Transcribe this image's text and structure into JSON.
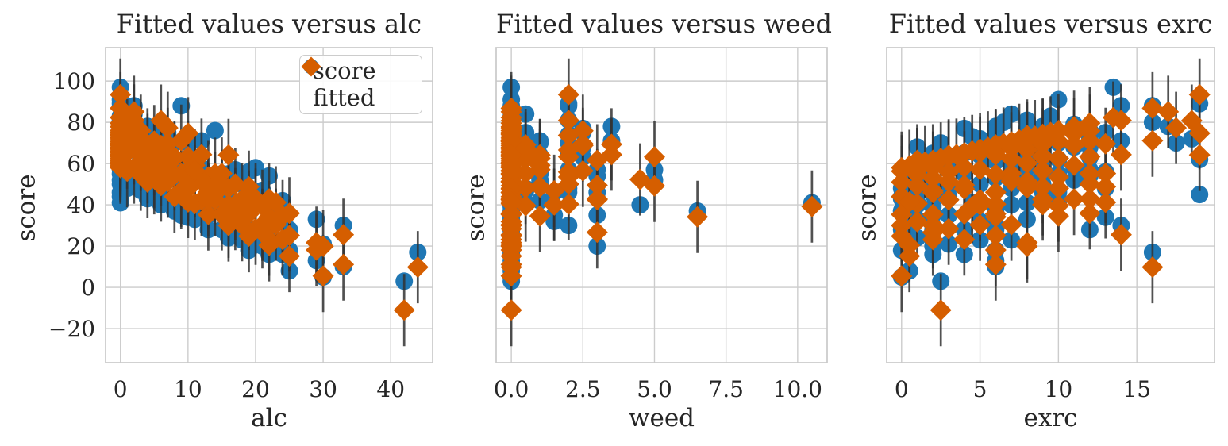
{
  "figure": {
    "background": "#ffffff",
    "text_color": "#262626",
    "grid_color": "#cccccc",
    "spine_color": "#c9c9c9",
    "errorbar_color": "#333333"
  },
  "legend": {
    "items": [
      {
        "label": "score",
        "marker": "circle"
      },
      {
        "label": "fitted",
        "marker": "diamond"
      }
    ]
  },
  "chart_data": {
    "type": "scatter",
    "colors": {
      "score": "#1f77b4",
      "fitted": "#d55e00"
    },
    "ylabel": "score",
    "yticks": [
      -20,
      0,
      20,
      40,
      60,
      80,
      100
    ],
    "ytick_labels": [
      "−20",
      "0",
      "20",
      "40",
      "60",
      "80",
      "100"
    ],
    "ylim": [
      -36.5,
      116.2
    ],
    "grid": true,
    "error_bar_halfwidth": 17.5,
    "x_keys": [
      "alc",
      "weed",
      "exrc"
    ],
    "panels": [
      {
        "title": "Fitted values versus alc",
        "xlabel": "alc",
        "ylabel": "score",
        "x_index": 0,
        "xticks": [
          0,
          10,
          20,
          30,
          40
        ],
        "xtick_labels": [
          "0",
          "10",
          "20",
          "30",
          "40"
        ],
        "xlim": [
          -2.2,
          46.2
        ],
        "show_ytick_labels": true,
        "show_legend": true
      },
      {
        "title": "Fitted values versus weed",
        "xlabel": "weed",
        "ylabel": "score",
        "x_index": 1,
        "xticks": [
          0,
          2.5,
          5,
          7.5,
          10
        ],
        "xtick_labels": [
          "0.0",
          "2.5",
          "5.0",
          "7.5",
          "10.0"
        ],
        "xlim": [
          -0.53,
          11.03
        ],
        "show_ytick_labels": false,
        "show_legend": false
      },
      {
        "title": "Fitted values versus exrc",
        "xlabel": "exrc",
        "ylabel": "score",
        "x_index": 2,
        "xticks": [
          0,
          5,
          10,
          15
        ],
        "xtick_labels": [
          "0",
          "5",
          "10",
          "15"
        ],
        "xlim": [
          -0.95,
          19.95
        ],
        "show_ytick_labels": false,
        "show_legend": false
      }
    ],
    "observations_columns": [
      "alc",
      "weed",
      "exrc",
      "score",
      "fitted"
    ],
    "observations": [
      [
        0,
        0,
        0,
        44,
        58.0
      ],
      [
        0,
        0,
        1,
        68,
        59.8
      ],
      [
        0,
        0,
        2,
        65,
        61.6
      ],
      [
        0,
        0,
        3,
        57,
        63.4
      ],
      [
        0,
        0,
        4,
        77,
        65.2
      ],
      [
        0,
        0,
        5,
        65,
        67.0
      ],
      [
        0,
        0,
        6,
        78,
        68.8
      ],
      [
        0,
        0,
        7,
        61,
        70.6
      ],
      [
        0,
        0,
        8,
        77,
        72.4
      ],
      [
        0,
        0,
        9,
        70,
        74.2
      ],
      [
        0,
        0,
        10,
        91,
        76.0
      ],
      [
        0,
        0,
        11,
        79,
        77.8
      ],
      [
        0,
        0,
        12,
        72,
        79.6
      ],
      [
        0,
        0,
        13.5,
        97,
        82.3
      ],
      [
        0,
        2,
        19,
        89,
        93.4
      ],
      [
        0,
        0,
        0.5,
        52,
        58.9
      ],
      [
        0,
        0,
        1.5,
        55,
        60.7
      ],
      [
        0,
        0,
        2.5,
        70,
        62.5
      ],
      [
        0,
        0,
        3.5,
        58,
        64.3
      ],
      [
        0,
        0,
        4.5,
        73,
        66.1
      ],
      [
        0,
        0,
        5.5,
        62,
        67.9
      ],
      [
        0,
        0,
        6.5,
        80,
        69.7
      ],
      [
        0,
        0,
        7.5,
        65,
        71.5
      ],
      [
        0,
        0,
        8.5,
        60,
        73.3
      ],
      [
        0,
        0,
        9.5,
        83,
        75.1
      ],
      [
        0,
        1,
        3,
        50,
        64.0
      ],
      [
        0,
        0.5,
        6,
        75,
        69.1
      ],
      [
        0,
        3,
        1,
        46,
        61.6
      ],
      [
        0,
        2,
        8,
        81,
        73.6
      ],
      [
        0,
        0,
        16,
        80,
        86.8
      ],
      [
        1,
        0,
        0,
        48,
        56.3
      ],
      [
        1,
        0,
        5,
        72,
        65.3
      ],
      [
        1,
        2,
        9,
        66,
        73.7
      ],
      [
        2,
        0,
        2,
        50,
        58.1
      ],
      [
        2,
        0.5,
        7,
        84,
        67.4
      ],
      [
        2,
        0,
        11,
        68,
        74.3
      ],
      [
        3,
        0,
        1,
        47,
        54.6
      ],
      [
        3,
        1,
        6,
        71,
        64.2
      ],
      [
        3,
        0,
        10,
        62,
        70.8
      ],
      [
        4,
        0,
        0,
        43,
        51.0
      ],
      [
        4,
        0,
        4,
        65,
        58.2
      ],
      [
        4,
        2,
        8,
        74,
        66.6
      ],
      [
        5,
        0,
        2,
        45,
        52.9
      ],
      [
        5,
        0.5,
        7,
        70,
        62.2
      ],
      [
        5,
        0,
        12,
        63,
        70.9
      ],
      [
        6,
        0,
        1,
        40,
        49.3
      ],
      [
        6,
        1,
        5,
        64,
        57.1
      ],
      [
        6,
        0,
        9,
        72,
        63.7
      ],
      [
        7,
        0,
        3,
        44,
        51.2
      ],
      [
        7,
        0,
        8,
        67,
        60.2
      ],
      [
        7,
        2.5,
        13,
        75,
        69.6
      ],
      [
        8,
        0,
        0,
        37,
        44.0
      ],
      [
        8,
        0,
        6,
        61,
        54.8
      ],
      [
        8,
        1,
        10,
        70,
        62.6
      ],
      [
        9,
        0,
        2,
        39,
        45.9
      ],
      [
        9,
        0,
        16,
        88,
        71.1
      ],
      [
        9,
        0.5,
        7,
        48,
        55.2
      ],
      [
        10,
        0,
        4,
        55,
        47.7
      ],
      [
        10,
        0,
        9,
        49,
        56.7
      ],
      [
        10,
        2,
        12,
        70,
        63.3
      ],
      [
        11,
        0,
        1,
        33,
        40.6
      ],
      [
        11,
        0,
        7,
        59,
        51.4
      ],
      [
        11,
        1,
        11,
        52,
        59.2
      ],
      [
        12,
        0,
        3,
        35,
        42.4
      ],
      [
        12,
        0,
        8,
        58,
        51.4
      ],
      [
        12,
        3.5,
        14,
        71,
        64.3
      ],
      [
        13,
        0,
        0,
        28,
        35.3
      ],
      [
        13,
        0,
        6,
        53,
        46.1
      ],
      [
        13,
        2,
        10,
        46,
        53.5
      ],
      [
        14,
        0,
        5,
        50,
        42.5
      ],
      [
        14,
        0,
        12,
        76,
        55.1
      ],
      [
        14,
        0.5,
        8,
        41,
        48.2
      ],
      [
        15,
        0,
        2,
        28,
        35.4
      ],
      [
        15,
        1,
        9,
        55,
        48.6
      ],
      [
        15,
        0,
        13,
        48,
        55.2
      ],
      [
        16,
        0,
        1,
        24,
        31.8
      ],
      [
        16,
        0,
        10,
        55,
        48.0
      ],
      [
        17,
        0,
        4,
        28,
        35.5
      ],
      [
        17,
        2,
        12,
        57,
        50.1
      ],
      [
        18,
        0,
        2,
        23,
        30.1
      ],
      [
        18,
        0,
        9,
        50,
        42.7
      ],
      [
        19,
        0,
        6,
        28,
        35.6
      ],
      [
        19,
        1,
        13,
        56,
        48.8
      ],
      [
        20,
        0,
        3,
        21,
        28.4
      ],
      [
        20,
        0,
        11,
        58,
        42.8
      ],
      [
        21,
        0,
        5,
        23,
        30.3
      ],
      [
        21,
        0.5,
        10,
        47,
        39.6
      ],
      [
        22,
        0,
        2,
        16,
        23.1
      ],
      [
        22,
        3,
        12,
        54,
        42.9
      ],
      [
        23,
        0,
        7,
        23,
        30.4
      ],
      [
        23,
        0,
        13,
        34,
        41.2
      ],
      [
        24,
        0,
        4,
        16,
        23.2
      ],
      [
        24,
        1,
        10,
        42,
        34.6
      ],
      [
        25,
        0,
        6,
        18,
        25.1
      ],
      [
        25,
        0,
        12,
        28,
        35.9
      ],
      [
        29,
        0,
        8,
        33,
        21.7
      ],
      [
        29,
        0,
        6,
        13,
        18.1
      ],
      [
        30,
        0,
        0,
        5,
        5.5
      ],
      [
        30,
        0,
        8,
        21,
        19.9
      ],
      [
        33,
        0,
        14,
        30,
        25.5
      ],
      [
        33,
        0,
        6,
        10,
        11.1
      ],
      [
        42,
        0,
        2.5,
        3,
        -11.0
      ],
      [
        44,
        0,
        16,
        17,
        9.8
      ],
      [
        6,
        2.5,
        11,
        77,
        68.8
      ],
      [
        10,
        3,
        4,
        57,
        49.5
      ],
      [
        4,
        3.5,
        9,
        78,
        69.3
      ],
      [
        12,
        4.5,
        7,
        40,
        52.3
      ],
      [
        8,
        5,
        9,
        57,
        63.2
      ],
      [
        15,
        5,
        8,
        52,
        49.2
      ],
      [
        22,
        6.5,
        6,
        37,
        34.2
      ],
      [
        19,
        10.5,
        4.5,
        41,
        39.2
      ],
      [
        5,
        2,
        3,
        48,
        55.9
      ],
      [
        9,
        1.5,
        2,
        35,
        46.8
      ],
      [
        16,
        1.5,
        5,
        32,
        39.9
      ],
      [
        3,
        2.5,
        12,
        68,
        75.9
      ],
      [
        11,
        2.5,
        9,
        63,
        56.5
      ],
      [
        2,
        2,
        14,
        88,
        80.9
      ],
      [
        17,
        2,
        6,
        30,
        40.3
      ],
      [
        13,
        3,
        3,
        35,
        42.5
      ],
      [
        21,
        3,
        2,
        20,
        26.7
      ],
      [
        2,
        0,
        17,
        78,
        85.1
      ],
      [
        6,
        0,
        18.5,
        72,
        80.8
      ],
      [
        10,
        0,
        19,
        62,
        74.7
      ],
      [
        16,
        0,
        19,
        45,
        64.2
      ],
      [
        7,
        0,
        17.5,
        70,
        77.3
      ],
      [
        16,
        0,
        0,
        37,
        30.0
      ],
      [
        19,
        0,
        0,
        18,
        24.8
      ],
      [
        25,
        0,
        0.5,
        8,
        15.2
      ],
      [
        10,
        0,
        0.5,
        34,
        41.4
      ],
      [
        22,
        0,
        0.5,
        26,
        20.4
      ],
      [
        20,
        1.5,
        9,
        46,
        40.1
      ],
      [
        0,
        0,
        1,
        41,
        59.8
      ]
    ]
  }
}
